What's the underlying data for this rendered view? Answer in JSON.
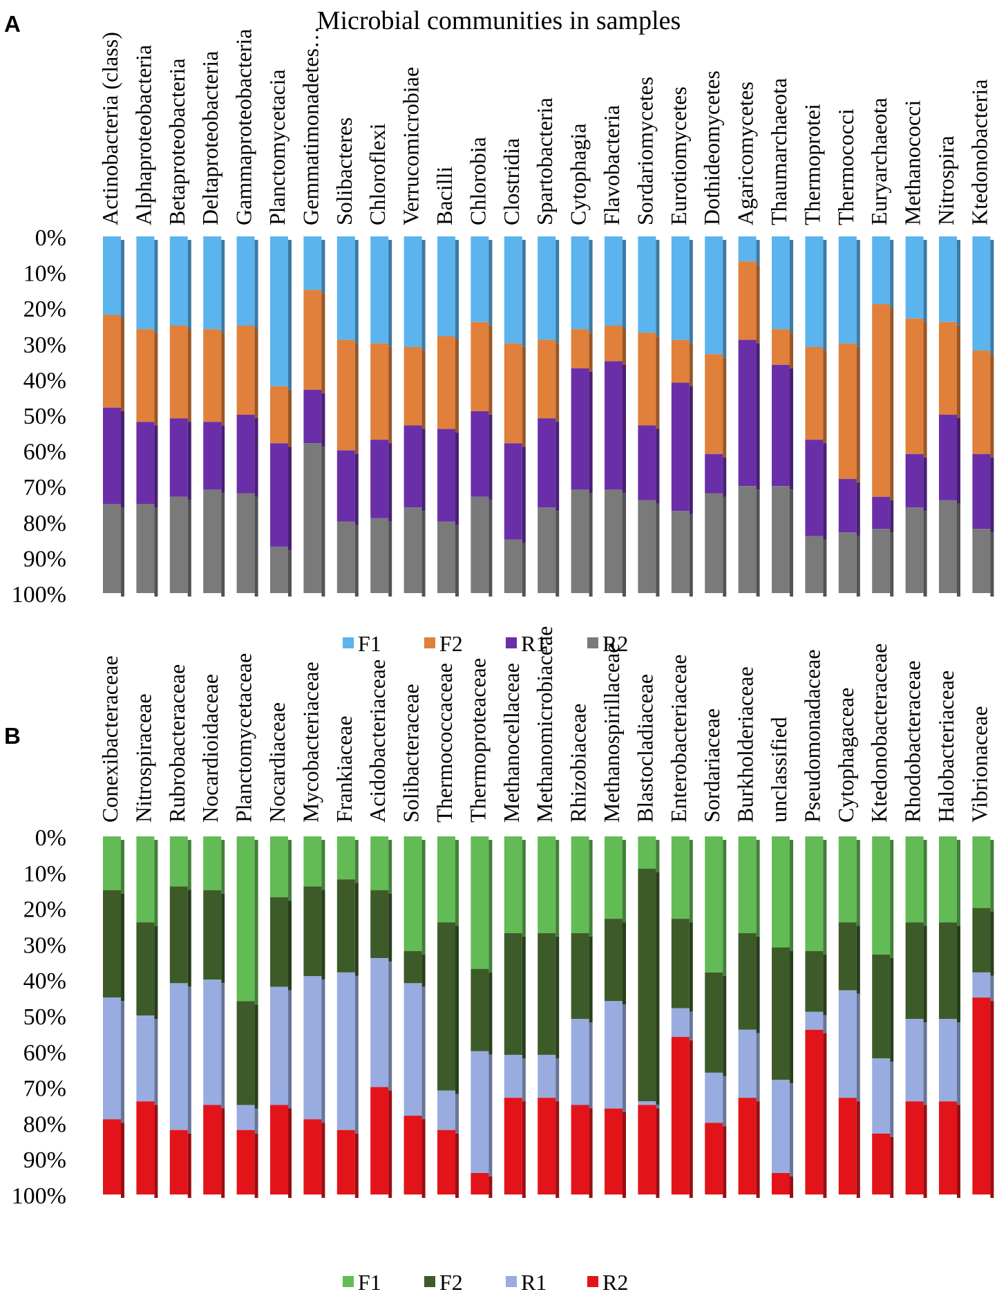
{
  "figure": {
    "panels": [
      "A",
      "B"
    ]
  },
  "chart_data": [
    {
      "panel_label": "A",
      "type": "bar",
      "stacked": true,
      "normalized": true,
      "orientation": "vertical",
      "y_inverted": true,
      "title": "Microbial communities in samples",
      "xlabel": "",
      "ylabel": "",
      "ylim": [
        0,
        100
      ],
      "yticks": [
        "0%",
        "10%",
        "20%",
        "30%",
        "40%",
        "50%",
        "60%",
        "70%",
        "80%",
        "90%",
        "100%"
      ],
      "legend_position": "bottom",
      "categories": [
        "Actinobacteria (class)",
        "Alphaproteobacteria",
        "Betaproteobacteria",
        "Deltaproteobacteria",
        "Gammaproteobacteria",
        "Planctomycetacia",
        "Gemmatimonadetes…",
        "Solibacteres",
        "Chloroflexi",
        "Verrucomicrobiae",
        "Bacilli",
        "Chlorobia",
        "Clostridia",
        "Spartobacteria",
        "Cytophagia",
        "Flavobacteria",
        "Sordariomycetes",
        "Eurotiomycetes",
        "Dothideomycetes",
        "Agaricomycetes",
        "Thaumarchaeota",
        "Thermoprotei",
        "Thermococci",
        "Euryarchaeota",
        "Methanococci",
        "Nitrospira",
        "Ktedonobacteria"
      ],
      "series": [
        {
          "name": "F1",
          "color": "#5bb4ee",
          "values": [
            22,
            26,
            25,
            26,
            25,
            42,
            15,
            29,
            30,
            31,
            28,
            24,
            30,
            29,
            26,
            25,
            27,
            29,
            33,
            7,
            26,
            31,
            30,
            19,
            23,
            24,
            32
          ]
        },
        {
          "name": "F2",
          "color": "#e0803b",
          "values": [
            26,
            26,
            26,
            26,
            25,
            16,
            28,
            31,
            27,
            22,
            26,
            25,
            28,
            22,
            11,
            10,
            26,
            12,
            28,
            22,
            10,
            26,
            38,
            54,
            38,
            26,
            29
          ]
        },
        {
          "name": "R1",
          "color": "#6a2fa8",
          "values": [
            27,
            23,
            22,
            19,
            22,
            29,
            15,
            20,
            22,
            23,
            26,
            24,
            27,
            25,
            34,
            36,
            21,
            36,
            11,
            41,
            34,
            27,
            15,
            9,
            15,
            24,
            21
          ]
        },
        {
          "name": "R2",
          "color": "#7a7a7a",
          "values": [
            25,
            25,
            27,
            29,
            28,
            13,
            42,
            20,
            21,
            24,
            20,
            27,
            15,
            24,
            29,
            29,
            26,
            23,
            28,
            30,
            30,
            16,
            17,
            18,
            24,
            26,
            18
          ]
        }
      ]
    },
    {
      "panel_label": "B",
      "type": "bar",
      "stacked": true,
      "normalized": true,
      "orientation": "vertical",
      "y_inverted": true,
      "title": "",
      "xlabel": "",
      "ylabel": "",
      "ylim": [
        0,
        100
      ],
      "yticks": [
        "0%",
        "10%",
        "20%",
        "30%",
        "40%",
        "50%",
        "60%",
        "70%",
        "80%",
        "90%",
        "100%"
      ],
      "legend_position": "bottom",
      "categories": [
        "Conexibacteraceae",
        "Nitrospiraceae",
        "Rubrobacteraceae",
        "Nocardioidaceae",
        "Planctomycetaceae",
        "Nocardiaceae",
        "Mycobacteriaceae",
        "Frankiaceae",
        "Acidobacteriaceae",
        "Solibacteraceae",
        "Thermococcaceae",
        "Thermoproteaceae",
        "Methanocellaceae",
        "Methanomicrobiaceae",
        "Rhizobiaceae",
        "Methanospirillaceae",
        "Blastocladiaceae",
        "Enterobacteriaceae",
        "Sordariaceae",
        "Burkholderiaceae",
        "unclassified",
        "Pseudomonadaceae",
        "Cytophagaceae",
        "Ktedonobacteraceae",
        "Rhodobacteraceae",
        "Halobacteriaceae",
        "Vibrionaceae"
      ],
      "series": [
        {
          "name": "F1",
          "color": "#62bb55",
          "values": [
            15,
            24,
            14,
            15,
            46,
            17,
            14,
            12,
            15,
            32,
            24,
            37,
            27,
            27,
            27,
            23,
            9,
            23,
            38,
            27,
            31,
            32,
            24,
            33,
            24,
            24,
            20
          ]
        },
        {
          "name": "F2",
          "color": "#3d5b28",
          "values": [
            30,
            26,
            27,
            25,
            29,
            25,
            25,
            26,
            19,
            9,
            47,
            23,
            34,
            34,
            24,
            23,
            65,
            25,
            28,
            27,
            37,
            17,
            19,
            29,
            27,
            27,
            18
          ]
        },
        {
          "name": "R1",
          "color": "#99ace0",
          "values": [
            34,
            24,
            41,
            35,
            7,
            33,
            40,
            44,
            36,
            37,
            11,
            34,
            12,
            12,
            24,
            30,
            1,
            8,
            14,
            19,
            26,
            5,
            30,
            21,
            23,
            23,
            7
          ]
        },
        {
          "name": "R2",
          "color": "#e2141a",
          "values": [
            21,
            26,
            18,
            25,
            18,
            25,
            21,
            18,
            30,
            22,
            18,
            6,
            27,
            27,
            25,
            24,
            25,
            44,
            20,
            27,
            6,
            46,
            27,
            17,
            26,
            26,
            55
          ]
        }
      ]
    }
  ]
}
